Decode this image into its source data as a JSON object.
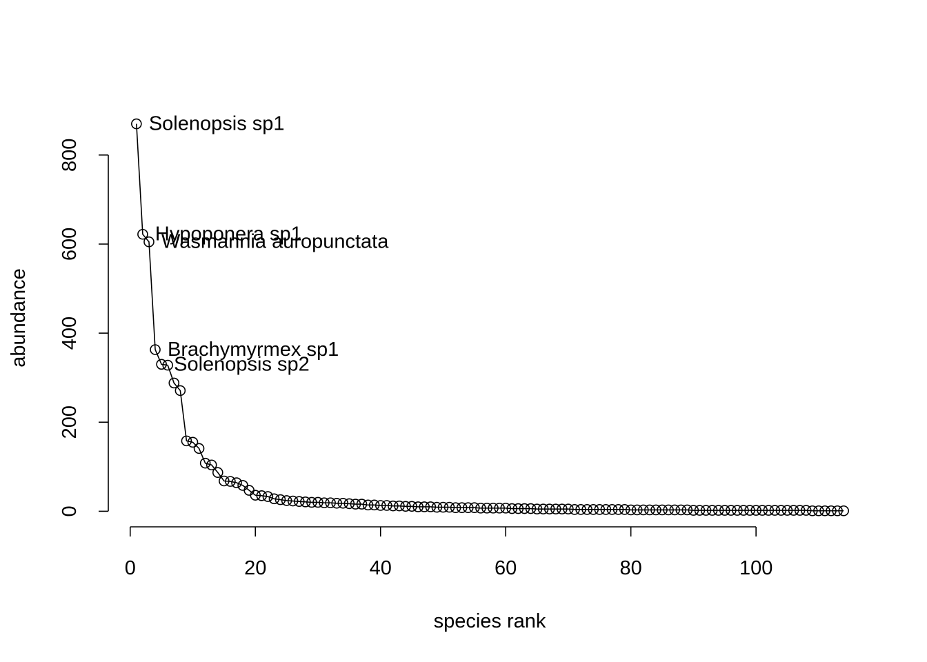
{
  "chart_data": {
    "type": "scatter",
    "title": "",
    "xlabel": "species rank",
    "ylabel": "abundance",
    "xlim": [
      -3.5,
      118.5
    ],
    "ylim": [
      -35,
      905
    ],
    "xticks": [
      0,
      20,
      40,
      60,
      80,
      100
    ],
    "yticks": [
      0,
      200,
      400,
      600,
      800
    ],
    "grid": false,
    "legend": "none",
    "series": [
      {
        "style": "points-and-line",
        "x": [
          1,
          2,
          3,
          4,
          5,
          6,
          7,
          8,
          9,
          10,
          11,
          12,
          13,
          14,
          15,
          16,
          17,
          18,
          19,
          20,
          21,
          22,
          23,
          24,
          25,
          26,
          27,
          28,
          29,
          30,
          31,
          32,
          33,
          34,
          35,
          36,
          37,
          38,
          39,
          40,
          41,
          42,
          43,
          44,
          45,
          46,
          47,
          48,
          49,
          50,
          51,
          52,
          53,
          54,
          55,
          56,
          57,
          58,
          59,
          60,
          61,
          62,
          63,
          64,
          65,
          66,
          67,
          68,
          69,
          70,
          71,
          72,
          73,
          74,
          75,
          76,
          77,
          78,
          79,
          80,
          81,
          82,
          83,
          84,
          85,
          86,
          87,
          88,
          89,
          90,
          91,
          92,
          93,
          94,
          95,
          96,
          97,
          98,
          99,
          100,
          101,
          102,
          103,
          104,
          105,
          106,
          107,
          108,
          109,
          110,
          111,
          112,
          113,
          114
        ],
        "y": [
          870,
          622,
          605,
          363,
          330,
          328,
          288,
          271,
          158,
          155,
          141,
          108,
          104,
          87,
          68,
          67,
          64,
          58,
          47,
          36,
          35,
          33,
          28,
          26,
          24,
          23,
          22,
          21,
          20,
          20,
          19,
          19,
          18,
          18,
          17,
          16,
          16,
          14,
          14,
          13,
          13,
          12,
          12,
          11,
          11,
          10,
          10,
          10,
          9,
          9,
          9,
          8,
          8,
          8,
          8,
          7,
          7,
          7,
          7,
          7,
          6,
          6,
          6,
          6,
          5,
          5,
          5,
          5,
          5,
          5,
          4,
          4,
          4,
          4,
          4,
          4,
          4,
          4,
          4,
          3,
          3,
          3,
          3,
          3,
          3,
          3,
          3,
          3,
          3,
          2,
          2,
          2,
          2,
          2,
          2,
          2,
          2,
          2,
          2,
          2,
          2,
          2,
          2,
          2,
          2,
          2,
          2,
          2,
          1,
          1,
          1,
          1,
          1,
          1
        ]
      }
    ],
    "annotations": [
      {
        "text": "Solenopsis sp1",
        "x": 1,
        "y": 870
      },
      {
        "text": "Hypoponera sp1",
        "x": 2,
        "y": 622
      },
      {
        "text": "Wasmannia auropunctata",
        "x": 3,
        "y": 605
      },
      {
        "text": "Brachymyrmex sp1",
        "x": 4,
        "y": 363
      },
      {
        "text": "Solenopsis sp2",
        "x": 5,
        "y": 330
      }
    ]
  }
}
